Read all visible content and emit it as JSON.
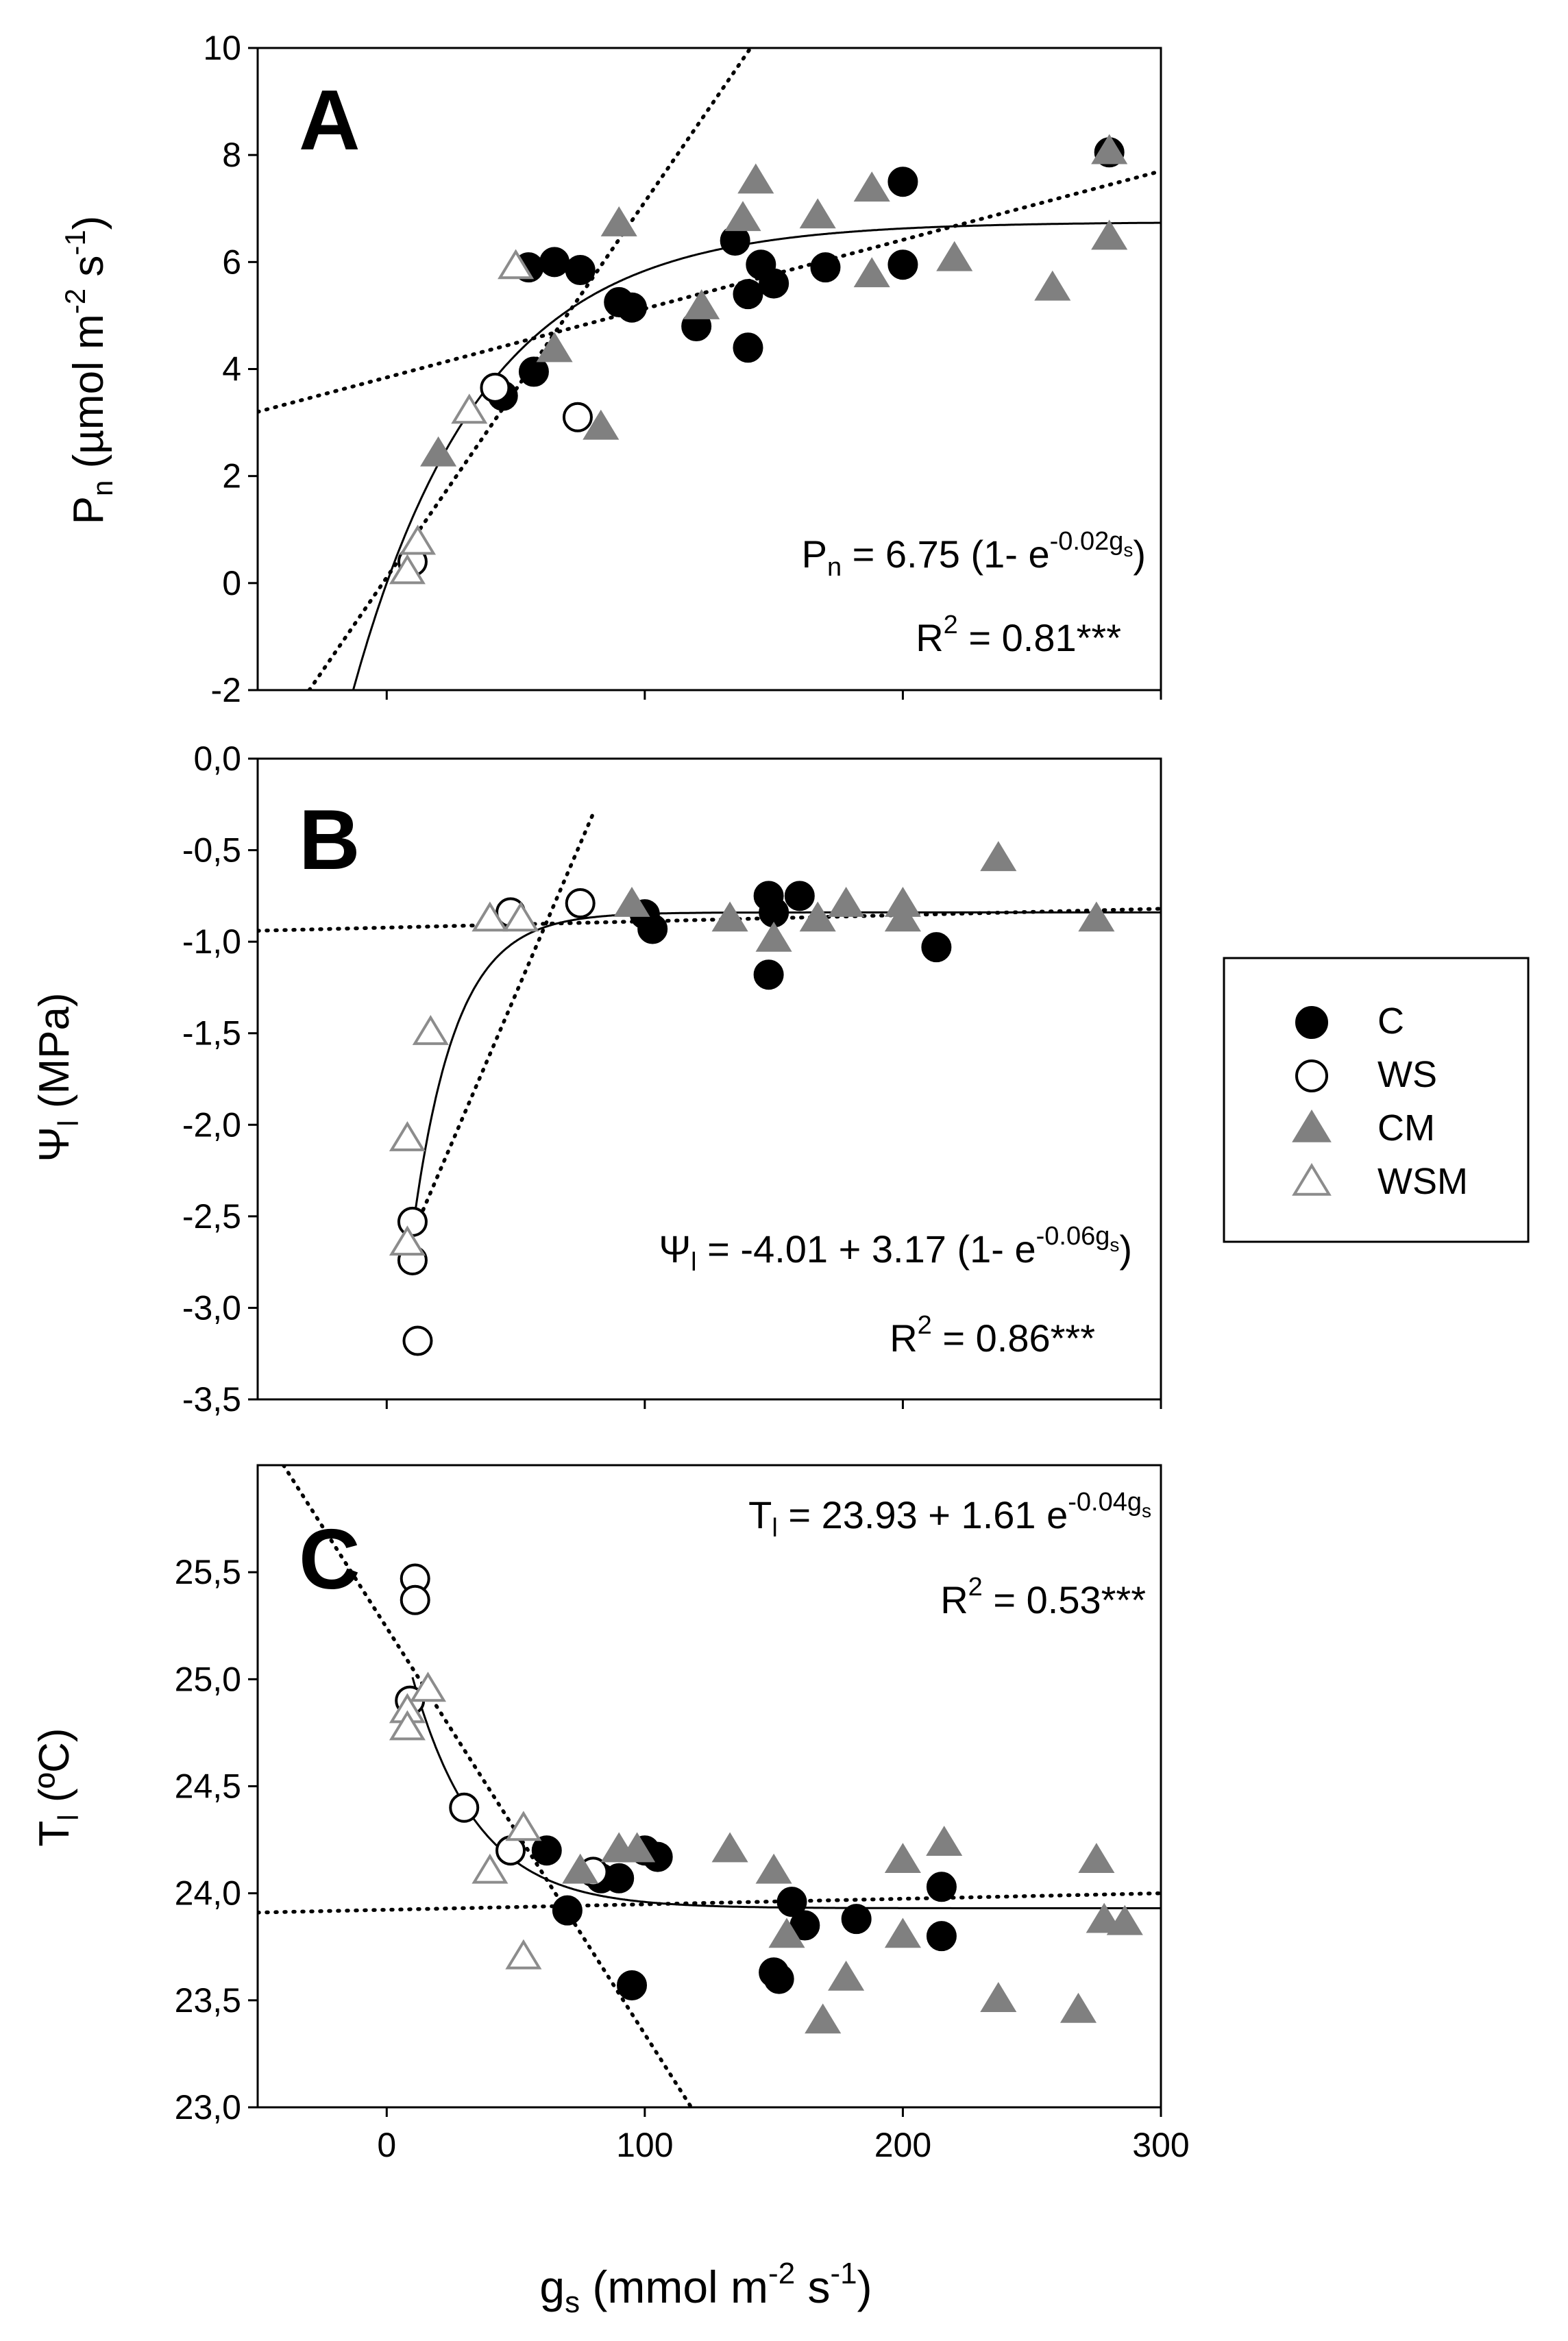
{
  "chart_data": [
    {
      "type": "scatter",
      "panel": "A",
      "ylabel": "Pn (µmol m-2 s-1)",
      "ylabel_parts": {
        "main": "P",
        "sub": "n",
        "unit": " (µmol m",
        "exp1": "-2",
        "mid": " s",
        "exp2": "-1",
        "end": ")"
      },
      "xlim": [
        -50,
        300
      ],
      "ylim": [
        -2,
        10
      ],
      "yticks": [
        -2,
        0,
        2,
        4,
        6,
        8,
        10
      ],
      "ytick_labels": [
        "-2",
        "0",
        "2",
        "4",
        "6",
        "8",
        "10"
      ],
      "equation": "Pn = 6.75 (1- e-0.02gs)",
      "equation_parts": {
        "lhs": "P",
        "lhs_sub": "n",
        "body": " = 6.75 (1- e",
        "exp": "-0.02g",
        "exp_sub": "s",
        "end": ")"
      },
      "r2": "R2 = 0.81***",
      "r2_parts": {
        "r": "R",
        "exp": "2",
        "rest": " = 0.81***"
      },
      "curve": {
        "kind": "exp_rise",
        "a": 6.75,
        "k": 0.02,
        "x0": -19,
        "x1": 300
      },
      "dotted_lines": [
        {
          "x": [
            -50,
            300
          ],
          "y": [
            3.2,
            7.7
          ]
        },
        {
          "x": [
            -30,
            141
          ],
          "y": [
            -2,
            10
          ]
        }
      ],
      "series": [
        {
          "name": "C",
          "points": [
            [
              55,
              5.9
            ],
            [
              65,
              6.0
            ],
            [
              75,
              5.85
            ],
            [
              95,
              5.15
            ],
            [
              90,
              5.25
            ],
            [
              57,
              3.95
            ],
            [
              45,
              3.5
            ],
            [
              120,
              4.8
            ],
            [
              140,
              4.4
            ],
            [
              135,
              6.4
            ],
            [
              140,
              5.4
            ],
            [
              145,
              5.95
            ],
            [
              150,
              5.6
            ],
            [
              170,
              5.9
            ],
            [
              200,
              7.5
            ],
            [
              200,
              5.95
            ],
            [
              280,
              8.05
            ]
          ]
        },
        {
          "name": "WS",
          "points": [
            [
              42,
              3.65
            ],
            [
              74,
              3.1
            ],
            [
              10,
              0.4
            ]
          ]
        },
        {
          "name": "CM",
          "points": [
            [
              20,
              2.4
            ],
            [
              65,
              4.35
            ],
            [
              83,
              2.9
            ],
            [
              90,
              6.7
            ],
            [
              122,
              5.15
            ],
            [
              138,
              6.8
            ],
            [
              143,
              7.5
            ],
            [
              167,
              6.85
            ],
            [
              188,
              7.35
            ],
            [
              188,
              5.75
            ],
            [
              220,
              6.05
            ],
            [
              258,
              5.5
            ],
            [
              280,
              8.05
            ],
            [
              280,
              6.45
            ]
          ]
        },
        {
          "name": "WSM",
          "points": [
            [
              32,
              3.2
            ],
            [
              50,
              5.9
            ],
            [
              12,
              0.75
            ],
            [
              8,
              0.2
            ]
          ]
        }
      ]
    },
    {
      "type": "scatter",
      "panel": "B",
      "ylabel": "Ψl (MPa)",
      "ylabel_parts": {
        "main": "Ψ",
        "sub": "l",
        "unit": " (MPa)"
      },
      "xlim": [
        -50,
        300
      ],
      "ylim": [
        -3.5,
        0.0
      ],
      "yticks": [
        -3.5,
        -3.0,
        -2.5,
        -2.0,
        -1.5,
        -1.0,
        -0.5,
        0.0
      ],
      "ytick_labels": [
        "-3,5",
        "-3,0",
        "-2,5",
        "-2,0",
        "-1,5",
        "-1,0",
        "-0,5",
        "0,0"
      ],
      "equation": "Ψl = -4.01 + 3.17 (1- e-0.06gs)",
      "equation_parts": {
        "lhs": "Ψ",
        "lhs_sub": "l",
        "body": " = -4.01 + 3.17 (1- e",
        "exp": "-0.06g",
        "exp_sub": "s",
        "end": ")"
      },
      "r2": "R2 = 0.86***",
      "r2_parts": {
        "r": "R",
        "exp": "2",
        "rest": " = 0.86***"
      },
      "curve": {
        "kind": "exp_rise_offset",
        "c": -4.01,
        "a": 3.17,
        "k": 0.06,
        "x0": 10,
        "x1": 300
      },
      "dotted_lines": [
        {
          "x": [
            -50,
            300
          ],
          "y": [
            -0.94,
            -0.82
          ]
        },
        {
          "x": [
            10,
            80
          ],
          "y": [
            -2.6,
            -0.3
          ]
        }
      ],
      "series": [
        {
          "name": "C",
          "points": [
            [
              100,
              -0.85
            ],
            [
              103,
              -0.93
            ],
            [
              148,
              -0.75
            ],
            [
              150,
              -0.84
            ],
            [
              160,
              -0.75
            ],
            [
              148,
              -1.18
            ],
            [
              213,
              -1.03
            ]
          ]
        },
        {
          "name": "WS",
          "points": [
            [
              48,
              -0.84
            ],
            [
              75,
              -0.79
            ],
            [
              10,
              -2.53
            ],
            [
              10,
              -2.74
            ],
            [
              12,
              -3.18
            ]
          ]
        },
        {
          "name": "CM",
          "points": [
            [
              95,
              -0.8
            ],
            [
              133,
              -0.88
            ],
            [
              150,
              -0.99
            ],
            [
              167,
              -0.88
            ],
            [
              178,
              -0.8
            ],
            [
              200,
              -0.8
            ],
            [
              200,
              -0.88
            ],
            [
              237,
              -0.55
            ],
            [
              275,
              -0.88
            ]
          ]
        },
        {
          "name": "WSM",
          "points": [
            [
              40,
              -0.88
            ],
            [
              52,
              -0.88
            ],
            [
              17,
              -1.5
            ],
            [
              8,
              -2.08
            ],
            [
              8,
              -2.65
            ]
          ]
        }
      ]
    },
    {
      "type": "scatter",
      "panel": "C",
      "ylabel": "Tl (ºC)",
      "ylabel_parts": {
        "main": "T",
        "sub": "l",
        "unit": " (ºC)"
      },
      "xlabel": "gs (mmol m-2 s-1)",
      "xlabel_parts": {
        "main": "g",
        "sub": "s",
        "unit": " (mmol m",
        "exp1": "-2",
        "mid": " s",
        "exp2": "-1",
        "end": ")"
      },
      "xlim": [
        -50,
        300
      ],
      "ylim": [
        23.0,
        26.0
      ],
      "xticks": [
        0,
        100,
        200,
        300
      ],
      "xtick_labels": [
        "0",
        "100",
        "200",
        "300"
      ],
      "yticks": [
        23.0,
        23.5,
        24.0,
        24.5,
        25.0,
        25.5
      ],
      "ytick_labels": [
        "23,0",
        "23,5",
        "24,0",
        "24,5",
        "25,0",
        "25,5"
      ],
      "equation": "Tl = 23.93 + 1.61 e-0.04gs",
      "equation_parts": {
        "lhs": "T",
        "lhs_sub": "l",
        "body": " = 23.93 + 1.61 e",
        "exp": "-0.04g",
        "exp_sub": "s",
        "end": ""
      },
      "r2": "R2 = 0.53***",
      "r2_parts": {
        "r": "R",
        "exp": "2",
        "rest": " = 0.53***"
      },
      "curve": {
        "kind": "exp_decay_offset",
        "c": 23.93,
        "a": 1.61,
        "k": 0.04,
        "x0": 10,
        "x1": 300
      },
      "dotted_lines": [
        {
          "x": [
            -50,
            300
          ],
          "y": [
            23.91,
            24.0
          ]
        },
        {
          "x": [
            -40,
            118
          ],
          "y": [
            26.0,
            23.0
          ]
        }
      ],
      "series": [
        {
          "name": "C",
          "points": [
            [
              62,
              24.2
            ],
            [
              70,
              23.92
            ],
            [
              83,
              24.07
            ],
            [
              90,
              24.07
            ],
            [
              100,
              24.2
            ],
            [
              105,
              24.17
            ],
            [
              95,
              23.57
            ],
            [
              150,
              23.63
            ],
            [
              152,
              23.6
            ],
            [
              157,
              23.96
            ],
            [
              162,
              23.85
            ],
            [
              182,
              23.88
            ],
            [
              215,
              24.03
            ],
            [
              215,
              23.8
            ]
          ]
        },
        {
          "name": "WS",
          "points": [
            [
              11,
              25.47
            ],
            [
              11,
              25.37
            ],
            [
              9,
              24.9
            ],
            [
              30,
              24.4
            ],
            [
              48,
              24.2
            ],
            [
              80,
              24.1
            ]
          ]
        },
        {
          "name": "CM",
          "points": [
            [
              75,
              24.1
            ],
            [
              90,
              24.2
            ],
            [
              97,
              24.2
            ],
            [
              133,
              24.2
            ],
            [
              150,
              24.1
            ],
            [
              155,
              23.8
            ],
            [
              169,
              23.4
            ],
            [
              178,
              23.6
            ],
            [
              200,
              24.15
            ],
            [
              200,
              23.8
            ],
            [
              216,
              24.23
            ],
            [
              237,
              23.5
            ],
            [
              268,
              23.45
            ],
            [
              275,
              24.15
            ],
            [
              278,
              23.87
            ],
            [
              286,
              23.86
            ]
          ]
        },
        {
          "name": "WSM",
          "points": [
            [
              16,
              24.95
            ],
            [
              8,
              24.85
            ],
            [
              8,
              24.77
            ],
            [
              40,
              24.1
            ],
            [
              53,
              24.3
            ],
            [
              53,
              23.7
            ]
          ]
        }
      ]
    }
  ],
  "legend": {
    "entries": [
      {
        "label": "C",
        "marker": "circle",
        "fill": "#000000",
        "stroke": "#000000"
      },
      {
        "label": "WS",
        "marker": "circle",
        "fill": "#ffffff",
        "stroke": "#000000"
      },
      {
        "label": "CM",
        "marker": "triangle",
        "fill": "#808080",
        "stroke": "#808080"
      },
      {
        "label": "WSM",
        "marker": "triangle",
        "fill": "#ffffff",
        "stroke": "#8c8c8c"
      }
    ]
  },
  "colors": {
    "C": "#000000",
    "WS": "#000000",
    "CM": "#808080",
    "WSM": "#8c8c8c"
  }
}
